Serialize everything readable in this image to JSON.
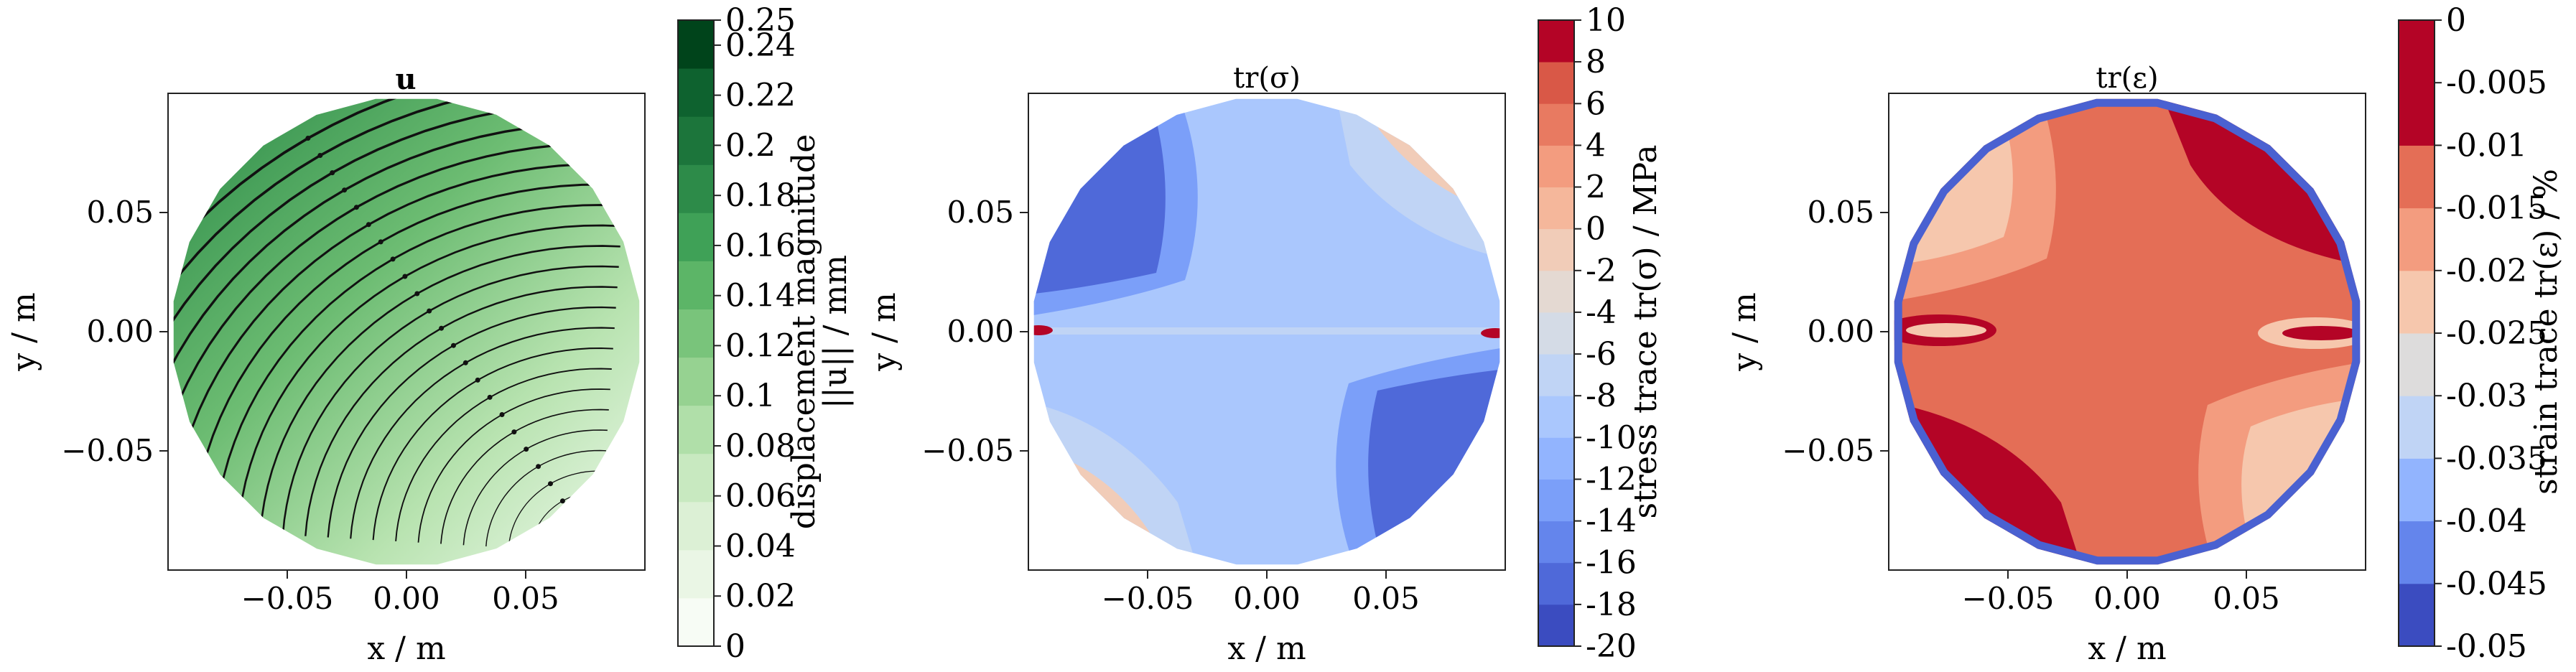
{
  "chart_data": [
    {
      "type": "heatmap",
      "title": "u",
      "xlabel": "x / m",
      "ylabel": "y / m",
      "xlim": [
        -0.1,
        0.1
      ],
      "ylim": [
        -0.1,
        0.1
      ],
      "xticks": [
        "−0.05",
        "0.00",
        "0.05"
      ],
      "yticks": [
        "0.05",
        "0.00",
        "−0.05"
      ],
      "colormap": "Greens",
      "streamlines": true,
      "colorbar": {
        "label_line1": "displacement magnitude",
        "label_line2": "||u|| / mm",
        "ticks": [
          "0.25",
          "0.24",
          "0.22",
          "0.2",
          "0.18",
          "0.16",
          "0.14",
          "0.12",
          "0.1",
          "0.08",
          "0.06",
          "0.04",
          "0.02",
          "0"
        ],
        "tick_values": [
          0.25,
          0.24,
          0.22,
          0.2,
          0.18,
          0.16,
          0.14,
          0.12,
          0.1,
          0.08,
          0.06,
          0.04,
          0.02,
          0
        ],
        "vmin": 0,
        "vmax": 0.25,
        "colors": [
          "#f7fcf5",
          "#eaf6e5",
          "#dcf0d5",
          "#c8e9c0",
          "#b0dfa9",
          "#96d291",
          "#79c47b",
          "#5cb567",
          "#3fa157",
          "#2d8b49",
          "#1c753b",
          "#0e622f",
          "#00441b"
        ]
      }
    },
    {
      "type": "heatmap",
      "title": "tr(σ)",
      "xlabel": "x / m",
      "ylabel": "y / m",
      "xlim": [
        -0.1,
        0.1
      ],
      "ylim": [
        -0.1,
        0.1
      ],
      "xticks": [
        "−0.05",
        "0.00",
        "0.05"
      ],
      "yticks": [
        "0.05",
        "0.00",
        "−0.05"
      ],
      "colormap": "coolwarm",
      "colorbar": {
        "label": "stress trace tr(σ) / MPa",
        "ticks": [
          "10",
          "8",
          "6",
          "4",
          "2",
          "0",
          "-2",
          "-4",
          "-6",
          "-8",
          "-10",
          "-12",
          "-14",
          "-16",
          "-18",
          "-20"
        ],
        "tick_values": [
          10,
          8,
          6,
          4,
          2,
          0,
          -2,
          -4,
          -6,
          -8,
          -10,
          -12,
          -14,
          -16,
          -18,
          -20
        ],
        "vmin": -20,
        "vmax": 10,
        "colors": [
          "#3b4cc0",
          "#4f69d9",
          "#6485ec",
          "#7b9ff9",
          "#92b4fe",
          "#aac7fd",
          "#c0d4f5",
          "#d4dbe6",
          "#e4d9d2",
          "#f1ccb8",
          "#f5b79b",
          "#f39c7f",
          "#e87a61",
          "#d95847",
          "#b40426"
        ]
      }
    },
    {
      "type": "heatmap",
      "title": "tr(ε)",
      "xlabel": "x / m",
      "ylabel": "y / m",
      "xlim": [
        -0.1,
        0.1
      ],
      "ylim": [
        -0.1,
        0.1
      ],
      "xticks": [
        "−0.05",
        "0.00",
        "0.05"
      ],
      "yticks": [
        "0.05",
        "0.00",
        "−0.05"
      ],
      "colormap": "coolwarm",
      "colorbar": {
        "label": "strain trace tr(ε) / %",
        "ticks": [
          "0",
          "-0.005",
          "-0.01",
          "-0.015",
          "-0.02",
          "-0.025",
          "-0.03",
          "-0.035",
          "-0.04",
          "-0.045",
          "-0.05"
        ],
        "tick_values": [
          0,
          -0.005,
          -0.01,
          -0.015,
          -0.02,
          -0.025,
          -0.03,
          -0.035,
          -0.04,
          -0.045,
          -0.05
        ],
        "vmin": -0.05,
        "vmax": 0,
        "colors": [
          "#3b4cc0",
          "#6485ec",
          "#92b4fe",
          "#c0d4f5",
          "#dddcdc",
          "#f6c7ad",
          "#f39c7f",
          "#e46e56",
          "#b40426",
          "#b40426"
        ]
      }
    }
  ]
}
